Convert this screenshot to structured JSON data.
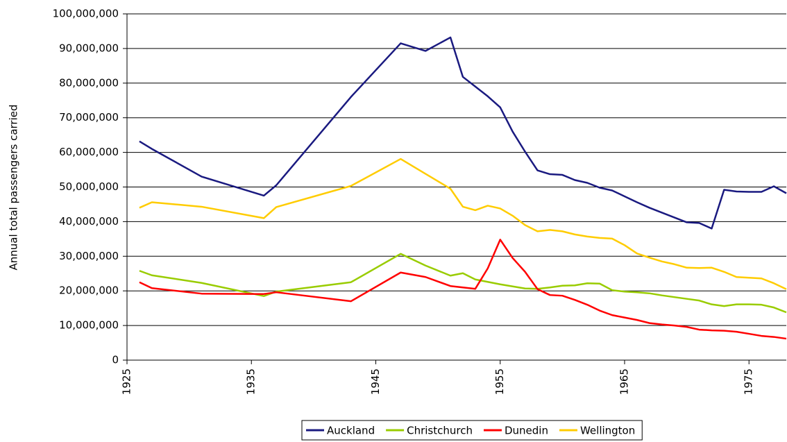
{
  "chart_data": {
    "type": "line",
    "y_label": "Annual total passengers carried",
    "x": [
      1926,
      1927,
      1931,
      1936,
      1937,
      1943,
      1947,
      1949,
      1951,
      1952,
      1953,
      1954,
      1955,
      1956,
      1957,
      1958,
      1959,
      1960,
      1961,
      1962,
      1963,
      1964,
      1965,
      1966,
      1967,
      1968,
      1969,
      1970,
      1971,
      1972,
      1973,
      1974,
      1975,
      1976,
      1977,
      1978
    ],
    "series": [
      {
        "name": "Auckland",
        "color": "#1a1a80",
        "values": [
          63200000,
          61000000,
          53000000,
          47500000,
          50500000,
          76000000,
          91500000,
          89300000,
          93200000,
          81800000,
          79000000,
          76200000,
          73000000,
          66000000,
          60200000,
          54800000,
          53700000,
          53500000,
          52000000,
          51200000,
          49800000,
          49000000,
          47300000,
          45600000,
          44000000,
          42600000,
          41200000,
          39800000,
          39600000,
          38000000,
          49200000,
          48700000,
          48600000,
          48600000,
          50200000,
          48200000
        ]
      },
      {
        "name": "Christchurch",
        "color": "#99cc00",
        "values": [
          25800000,
          24500000,
          22300000,
          18500000,
          19800000,
          22500000,
          30700000,
          27300000,
          24400000,
          25100000,
          23300000,
          22600000,
          21900000,
          21300000,
          20700000,
          20600000,
          21000000,
          21500000,
          21600000,
          22200000,
          22100000,
          20200000,
          19800000,
          19600000,
          19300000,
          18700000,
          18200000,
          17700000,
          17200000,
          16100000,
          15600000,
          16100000,
          16100000,
          16000000,
          15200000,
          13800000
        ]
      },
      {
        "name": "Dunedin",
        "color": "#ff0000",
        "values": [
          22500000,
          20800000,
          19200000,
          19100000,
          19600000,
          17000000,
          25300000,
          24000000,
          21400000,
          21000000,
          20600000,
          26500000,
          34800000,
          29500000,
          25500000,
          20500000,
          18800000,
          18600000,
          17400000,
          16000000,
          14300000,
          13000000,
          12300000,
          11600000,
          10700000,
          10300000,
          10000000,
          9600000,
          8800000,
          8600000,
          8500000,
          8200000,
          7600000,
          7000000,
          6700000,
          6200000
        ]
      },
      {
        "name": "Wellington",
        "color": "#ffcc00",
        "values": [
          44000000,
          45600000,
          44300000,
          41000000,
          44200000,
          50300000,
          58100000,
          53800000,
          49500000,
          44300000,
          43300000,
          44600000,
          43800000,
          41700000,
          39000000,
          37200000,
          37600000,
          37200000,
          36300000,
          35700000,
          35300000,
          35100000,
          33200000,
          30800000,
          29600000,
          28500000,
          27700000,
          26700000,
          26600000,
          26700000,
          25500000,
          24000000,
          23800000,
          23600000,
          22200000,
          20500000
        ]
      }
    ],
    "xlim": [
      1925,
      1978
    ],
    "xticks": [
      1925,
      1935,
      1945,
      1955,
      1965,
      1975
    ],
    "ylim": [
      0,
      100000000
    ],
    "yticks": [
      0,
      {
        "value": 10000000,
        "label": "10,000,000"
      },
      {
        "value": 20000000,
        "label": "20,000,000"
      },
      {
        "value": 30000000,
        "label": "30,000,000"
      },
      {
        "value": 40000000,
        "label": "40,000,000"
      },
      {
        "value": 50000000,
        "label": "50,000,000"
      },
      {
        "value": 60000000,
        "label": "60,000,000"
      },
      {
        "value": 70000000,
        "label": "70,000,000"
      },
      {
        "value": 80000000,
        "label": "80,000,000"
      },
      {
        "value": 90000000,
        "label": "90,000,000"
      },
      {
        "value": 100000000,
        "label": "100,000,000"
      }
    ],
    "grid": true,
    "legend": "bottom"
  }
}
